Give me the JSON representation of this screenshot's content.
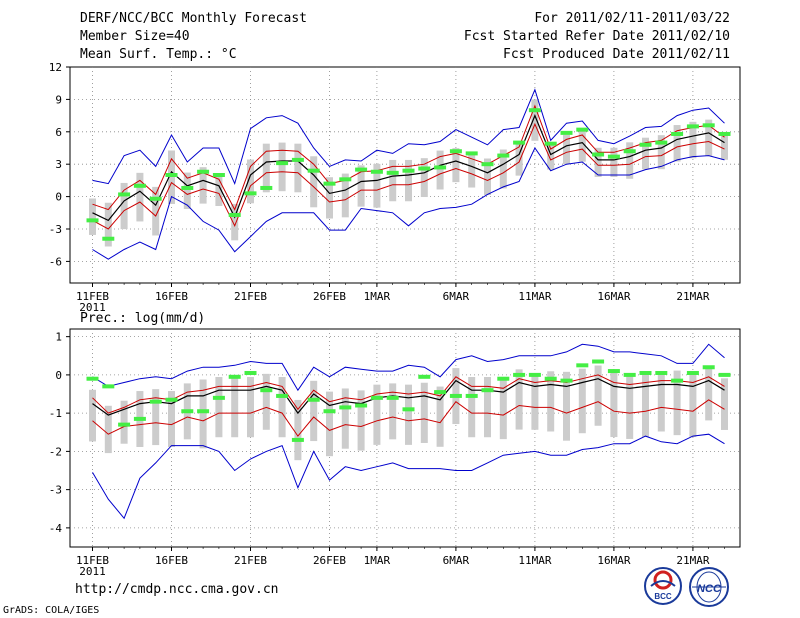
{
  "header": {
    "title": "DERF/NCC/BCC Monthly Forecast",
    "member": "Member Size=40",
    "variable": "Mean Surf. Temp.: °C",
    "period": "For 2011/02/11-2011/03/22",
    "started": "Fcst Started Refer Date 2011/02/10",
    "produced": "Fcst Produced Date 2011/02/11"
  },
  "footer": {
    "url": "http://cmdp.ncc.cma.gov.cn",
    "grads": "GrADS: COLA/IGES"
  },
  "logos": {
    "bcc": "BCC",
    "ncc": "NCC"
  },
  "colors": {
    "ensemble_mean": "#000000",
    "spread_band": "#cc0000",
    "extremes": "#0000cc",
    "box": "#cccccc",
    "observed": "#44ee44"
  },
  "chart_data": [
    {
      "type": "line",
      "title": "Mean Surf. Temp.: °C",
      "x_tick_labels": [
        "11FEB",
        "16FEB",
        "21FEB",
        "26FEB",
        "1MAR",
        "6MAR",
        "11MAR",
        "16MAR",
        "21MAR"
      ],
      "x_tick_days": [
        0,
        5,
        10,
        15,
        18,
        23,
        28,
        33,
        38
      ],
      "year_label": "2011",
      "ylim": [
        -8,
        12
      ],
      "yticks": [
        -6,
        -3,
        0,
        3,
        6,
        9,
        12
      ],
      "series": [
        {
          "name": "max",
          "values": [
            1.5,
            1.2,
            3.8,
            4.3,
            2.8,
            5.7,
            3.2,
            4.5,
            4.5,
            1.2,
            6.3,
            7.3,
            7.5,
            6.8,
            4.5,
            2.8,
            3.4,
            3.3,
            4.3,
            4.0,
            4.9,
            4.8,
            5.1,
            6.2,
            5.5,
            4.8,
            6.2,
            6.4,
            9.9,
            5.2,
            6.8,
            7.0,
            5.2,
            4.9,
            5.6,
            6.4,
            6.5,
            7.5,
            8.0,
            8.2,
            6.8
          ]
        },
        {
          "name": "upper",
          "values": [
            -0.7,
            -1.2,
            0.6,
            1.5,
            0.2,
            3.5,
            1.7,
            2.2,
            1.6,
            -1.2,
            2.8,
            4.2,
            4.3,
            4.2,
            3.0,
            1.2,
            1.5,
            2.3,
            2.4,
            2.8,
            2.8,
            3.0,
            3.7,
            4.0,
            3.5,
            3.0,
            3.8,
            4.6,
            8.4,
            4.4,
            5.3,
            5.7,
            4.1,
            4.1,
            4.5,
            5.0,
            5.2,
            6.1,
            6.4,
            6.6,
            5.5
          ]
        },
        {
          "name": "mean",
          "values": [
            -1.5,
            -2.2,
            -0.4,
            0.5,
            -0.8,
            2.3,
            1.0,
            1.5,
            1.0,
            -1.9,
            2.0,
            3.2,
            3.3,
            3.3,
            2.0,
            0.3,
            0.6,
            1.4,
            1.5,
            1.9,
            2.0,
            2.2,
            2.9,
            3.3,
            2.8,
            2.2,
            3.0,
            3.9,
            7.5,
            3.9,
            4.7,
            5.0,
            3.4,
            3.4,
            3.7,
            4.3,
            4.5,
            5.3,
            5.6,
            5.9,
            5.0
          ]
        },
        {
          "name": "lower",
          "values": [
            -2.2,
            -3.0,
            -1.3,
            -0.5,
            -1.8,
            1.3,
            0.2,
            0.7,
            0.3,
            -2.7,
            1.0,
            2.2,
            2.3,
            2.2,
            0.9,
            -0.5,
            -0.3,
            0.6,
            0.6,
            1.1,
            1.1,
            1.4,
            2.1,
            2.6,
            2.1,
            1.5,
            2.2,
            3.2,
            6.7,
            3.4,
            4.1,
            4.4,
            2.9,
            2.9,
            3.0,
            3.7,
            3.8,
            4.6,
            4.9,
            5.1,
            4.4
          ]
        },
        {
          "name": "min",
          "values": [
            -4.9,
            -5.8,
            -4.9,
            -4.2,
            -4.9,
            0.0,
            -0.8,
            -2.3,
            -3.1,
            -5.1,
            -3.7,
            -2.3,
            -1.5,
            -1.5,
            -1.5,
            -3.1,
            -3.1,
            -1.1,
            -1.3,
            -1.5,
            -2.7,
            -1.5,
            -1.1,
            -1.0,
            -0.7,
            0.2,
            0.9,
            1.4,
            4.5,
            2.4,
            3.0,
            3.2,
            2.0,
            2.0,
            2.0,
            2.5,
            2.8,
            3.4,
            3.7,
            3.8,
            3.4
          ]
        },
        {
          "name": "observed",
          "values": [
            -2.2,
            -3.9,
            0.2,
            1.0,
            -0.2,
            2.0,
            0.8,
            2.3,
            2.0,
            -1.7,
            0.3,
            0.8,
            3.1,
            3.4,
            2.4,
            1.2,
            1.6,
            2.5,
            2.3,
            2.2,
            2.4,
            2.6,
            2.7,
            4.2,
            4.0,
            3.0,
            3.8,
            5.0,
            8.0,
            4.9,
            5.9,
            6.2,
            3.9,
            3.7,
            4.2,
            4.8,
            5.0,
            5.8,
            6.5,
            6.6,
            5.8
          ]
        }
      ]
    },
    {
      "type": "line",
      "title": "Prec.: log(mm/d)",
      "x_tick_labels": [
        "11FEB",
        "16FEB",
        "21FEB",
        "26FEB",
        "1MAR",
        "6MAR",
        "11MAR",
        "16MAR",
        "21MAR"
      ],
      "x_tick_days": [
        0,
        5,
        10,
        15,
        18,
        23,
        28,
        33,
        38
      ],
      "year_label": "2011",
      "ylim": [
        -4.5,
        1.2
      ],
      "yticks": [
        -4,
        -3,
        -2,
        -1,
        0,
        1
      ],
      "series": [
        {
          "name": "max",
          "values": [
            -0.05,
            -0.3,
            -0.2,
            -0.1,
            -0.05,
            -0.1,
            0.1,
            0.2,
            0.2,
            0.25,
            0.35,
            0.3,
            0.3,
            -0.4,
            0.2,
            -0.05,
            0.2,
            0.15,
            0.1,
            0.1,
            0.25,
            0.2,
            -0.05,
            0.4,
            0.5,
            0.35,
            0.4,
            0.5,
            0.5,
            0.5,
            0.6,
            0.8,
            0.75,
            0.6,
            0.6,
            0.55,
            0.5,
            0.3,
            0.3,
            0.8,
            0.45
          ]
        },
        {
          "name": "upper",
          "values": [
            -0.6,
            -1.0,
            -0.85,
            -0.65,
            -0.6,
            -0.65,
            -0.45,
            -0.4,
            -0.3,
            -0.3,
            -0.3,
            -0.2,
            -0.3,
            -0.9,
            -0.4,
            -0.7,
            -0.6,
            -0.65,
            -0.5,
            -0.45,
            -0.5,
            -0.45,
            -0.55,
            -0.05,
            -0.3,
            -0.3,
            -0.35,
            -0.1,
            -0.2,
            -0.15,
            -0.2,
            -0.1,
            0.0,
            -0.2,
            -0.25,
            -0.2,
            -0.15,
            -0.15,
            -0.2,
            -0.05,
            -0.3
          ]
        },
        {
          "name": "mean",
          "values": [
            -0.75,
            -1.05,
            -0.9,
            -0.75,
            -0.7,
            -0.75,
            -0.55,
            -0.55,
            -0.4,
            -0.4,
            -0.4,
            -0.3,
            -0.4,
            -1.0,
            -0.5,
            -0.8,
            -0.7,
            -0.75,
            -0.6,
            -0.55,
            -0.6,
            -0.55,
            -0.65,
            -0.15,
            -0.4,
            -0.4,
            -0.45,
            -0.2,
            -0.3,
            -0.25,
            -0.3,
            -0.2,
            -0.1,
            -0.3,
            -0.35,
            -0.3,
            -0.25,
            -0.25,
            -0.3,
            -0.15,
            -0.4
          ]
        },
        {
          "name": "lower",
          "values": [
            -1.2,
            -1.55,
            -1.35,
            -1.3,
            -1.25,
            -1.3,
            -1.1,
            -1.2,
            -1.0,
            -1.0,
            -1.0,
            -0.85,
            -1.0,
            -1.6,
            -1.1,
            -1.45,
            -1.3,
            -1.35,
            -1.2,
            -1.1,
            -1.2,
            -1.15,
            -1.25,
            -0.7,
            -1.0,
            -1.0,
            -1.05,
            -0.8,
            -0.85,
            -0.85,
            -1.0,
            -0.85,
            -0.7,
            -0.95,
            -1.0,
            -0.95,
            -0.85,
            -0.9,
            -0.95,
            -0.65,
            -0.9
          ]
        },
        {
          "name": "min",
          "values": [
            -2.55,
            -3.25,
            -3.75,
            -2.7,
            -2.3,
            -1.85,
            -1.85,
            -1.85,
            -2.0,
            -2.5,
            -2.2,
            -2.0,
            -1.85,
            -2.95,
            -2.0,
            -2.75,
            -2.4,
            -2.5,
            -2.4,
            -2.3,
            -2.45,
            -2.45,
            -2.45,
            -2.5,
            -2.5,
            -2.3,
            -2.1,
            -2.05,
            -2.0,
            -2.1,
            -2.1,
            -1.95,
            -1.9,
            -1.8,
            -1.8,
            -1.6,
            -1.75,
            -1.8,
            -1.6,
            -1.55,
            -1.8
          ]
        },
        {
          "name": "observed",
          "values": [
            -0.1,
            -0.3,
            -1.3,
            -1.15,
            -0.7,
            -0.65,
            -0.95,
            -0.95,
            -0.6,
            -0.05,
            0.05,
            -0.4,
            -0.55,
            -1.7,
            -0.65,
            -0.95,
            -0.85,
            -0.8,
            -0.6,
            -0.6,
            -0.9,
            -0.05,
            -0.45,
            -0.55,
            -0.55,
            -0.4,
            -0.1,
            0.0,
            0.0,
            -0.1,
            -0.15,
            0.25,
            0.35,
            0.1,
            0.0,
            0.05,
            0.05,
            -0.15,
            0.05,
            0.2,
            0.0
          ]
        }
      ]
    }
  ]
}
